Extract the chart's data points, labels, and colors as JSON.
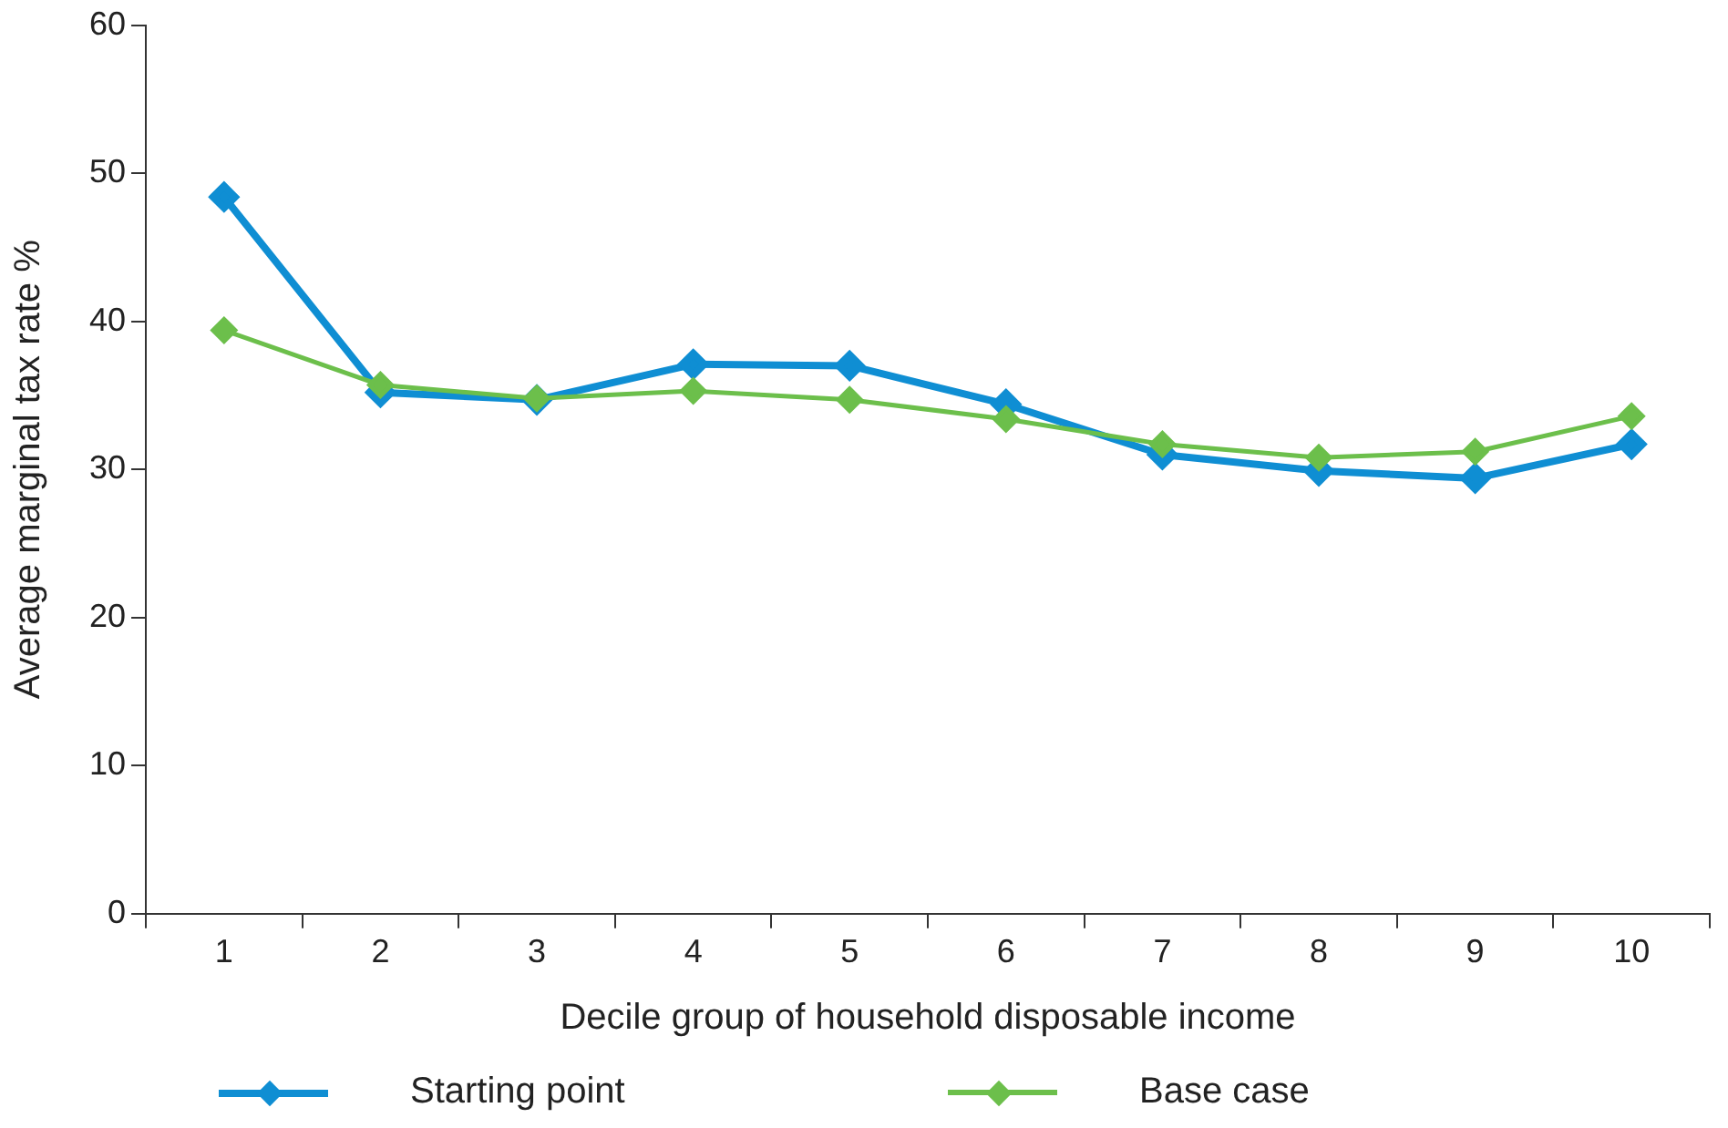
{
  "chart_data": {
    "type": "line",
    "xlabel": "Decile group of household disposable income",
    "ylabel": "Average marginal tax rate %",
    "categories": [
      "1",
      "2",
      "3",
      "4",
      "5",
      "6",
      "7",
      "8",
      "9",
      "10"
    ],
    "series": [
      {
        "name": "Starting point",
        "color": "#0f8ed3",
        "values": [
          48.4,
          35.2,
          34.7,
          37.1,
          37.0,
          34.4,
          31.0,
          29.9,
          29.4,
          31.7
        ]
      },
      {
        "name": "Base case",
        "color": "#6cbf4b",
        "values": [
          39.4,
          35.7,
          34.8,
          35.3,
          34.7,
          33.4,
          31.7,
          30.8,
          31.2,
          33.6
        ]
      }
    ],
    "ylim": [
      0,
      60
    ],
    "yticks": [
      0,
      10,
      20,
      30,
      40,
      50,
      60
    ],
    "grid": false,
    "legend": "bottom",
    "marker": "diamond",
    "line_style": "solid"
  }
}
